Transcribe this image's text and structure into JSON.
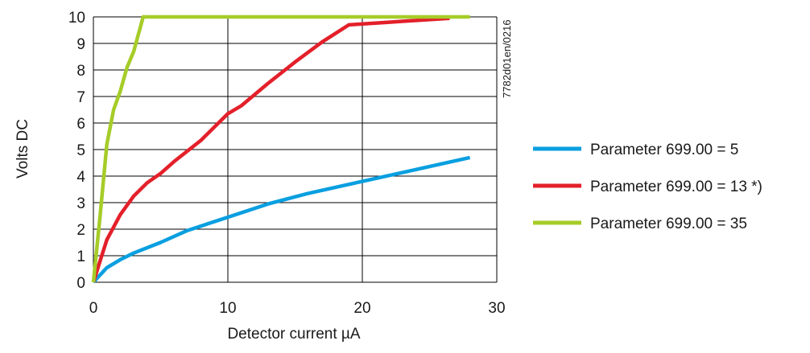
{
  "chart_data": {
    "type": "line",
    "xlabel": "Detector current µA",
    "ylabel": "Volts DC",
    "xlim": [
      0,
      30
    ],
    "ylim": [
      0,
      10
    ],
    "x_ticks": [
      0,
      10,
      20,
      30
    ],
    "y_ticks": [
      0,
      1,
      2,
      3,
      4,
      5,
      6,
      7,
      8,
      9,
      10
    ],
    "grid": true,
    "legend_position": "right",
    "side_code": "7782d01en/0216",
    "series": [
      {
        "name": "Parameter 699.00 = 5",
        "color": "#0a9fe0",
        "points": [
          [
            0,
            0
          ],
          [
            1,
            0.55
          ],
          [
            2,
            0.85
          ],
          [
            3,
            1.1
          ],
          [
            5,
            1.5
          ],
          [
            7,
            1.95
          ],
          [
            10,
            2.45
          ],
          [
            13,
            2.95
          ],
          [
            16,
            3.35
          ],
          [
            20,
            3.8
          ],
          [
            24,
            4.25
          ],
          [
            28,
            4.7
          ]
        ]
      },
      {
        "name": "Parameter 699.00 = 13 *)",
        "color": "#e3202a",
        "points": [
          [
            0,
            0
          ],
          [
            0.5,
            0.8
          ],
          [
            1,
            1.6
          ],
          [
            2,
            2.55
          ],
          [
            3,
            3.25
          ],
          [
            4,
            3.75
          ],
          [
            5,
            4.1
          ],
          [
            6,
            4.55
          ],
          [
            8,
            5.35
          ],
          [
            10,
            6.35
          ],
          [
            11,
            6.65
          ],
          [
            13,
            7.5
          ],
          [
            15,
            8.3
          ],
          [
            17,
            9.05
          ],
          [
            19,
            9.7
          ],
          [
            22,
            9.8
          ],
          [
            26.5,
            9.95
          ]
        ]
      },
      {
        "name": "Parameter 699.00 = 35",
        "color": "#a6cc28",
        "points": [
          [
            0,
            0
          ],
          [
            0.5,
            2.5
          ],
          [
            1,
            5.2
          ],
          [
            1.5,
            6.5
          ],
          [
            2,
            7.2
          ],
          [
            2.5,
            8.1
          ],
          [
            3,
            8.7
          ],
          [
            3.7,
            10
          ],
          [
            28,
            10
          ]
        ]
      }
    ]
  }
}
